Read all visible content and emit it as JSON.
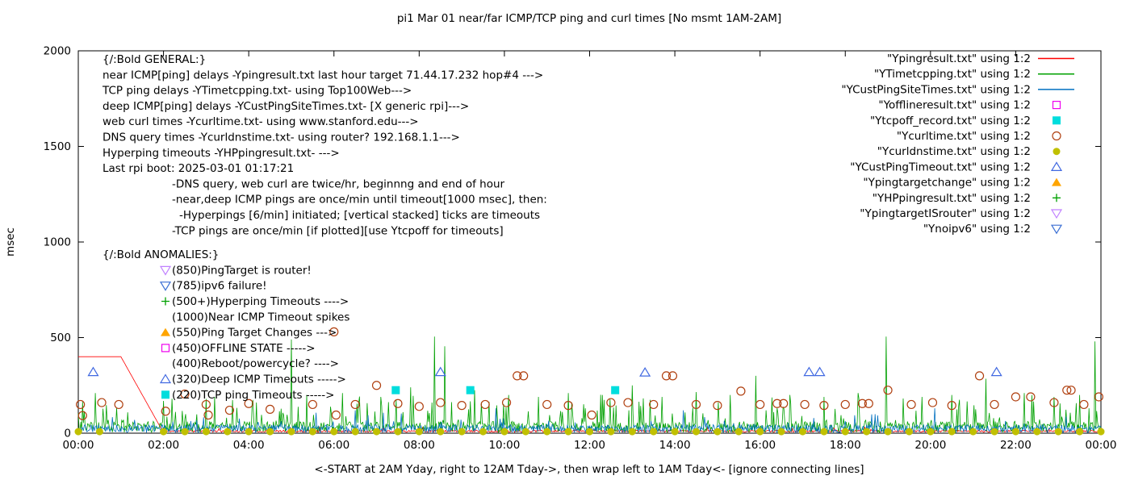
{
  "chart_data": {
    "type": "line",
    "title": "pi1 Mar 01  near/far ICMP/TCP ping and curl times [No msmt 1AM-2AM]",
    "xlabel": "<-START at 2AM Yday, right to 12AM Tday->, then wrap left to 1AM Tday<- [ignore connecting lines]",
    "ylabel": "msec",
    "xlim": [
      0,
      24
    ],
    "ylim": [
      0,
      2000
    ],
    "grid": false,
    "legend_position": "top-right-inside",
    "xticks": [
      {
        "v": 0,
        "label": "00:00"
      },
      {
        "v": 2,
        "label": "02:00"
      },
      {
        "v": 4,
        "label": "04:00"
      },
      {
        "v": 6,
        "label": "06:00"
      },
      {
        "v": 8,
        "label": "08:00"
      },
      {
        "v": 10,
        "label": "10:00"
      },
      {
        "v": 12,
        "label": "12:00"
      },
      {
        "v": 14,
        "label": "14:00"
      },
      {
        "v": 16,
        "label": "16:00"
      },
      {
        "v": 18,
        "label": "18:00"
      },
      {
        "v": 20,
        "label": "20:00"
      },
      {
        "v": 22,
        "label": "22:00"
      },
      {
        "v": 24,
        "label": "00:00"
      }
    ],
    "yticks": [
      {
        "v": 0,
        "label": "0"
      },
      {
        "v": 500,
        "label": "500"
      },
      {
        "v": 1000,
        "label": "1000"
      },
      {
        "v": 1500,
        "label": "1500"
      },
      {
        "v": 2000,
        "label": "2000"
      }
    ],
    "series": [
      {
        "name": "\"Ypingresult.txt\" using 1:2",
        "kind": "noisyline",
        "color": "#ff0000",
        "seed": 11,
        "keys": [
          [
            0,
            400
          ],
          [
            1,
            400
          ],
          [
            2,
            2
          ],
          [
            24,
            2
          ]
        ],
        "noise": {
          "from": 2,
          "lo": 3,
          "hi": 14,
          "p": 0.03,
          "extra": 25
        },
        "spikes": []
      },
      {
        "name": "\"YTimetcpping.txt\" using 1:2",
        "kind": "noisyline",
        "color": "#00a000",
        "seed": 23,
        "keys": [
          [
            0,
            0
          ],
          [
            24,
            0
          ]
        ],
        "noise": {
          "from": 0,
          "lo": 4,
          "hi": 62,
          "p": 0.1,
          "extra": 150
        },
        "spikes": [
          [
            0.4,
            210
          ],
          [
            2.2,
            180
          ],
          [
            3.2,
            190
          ],
          [
            4.1,
            170
          ],
          [
            5.0,
            490
          ],
          [
            5.35,
            200
          ],
          [
            6.2,
            210
          ],
          [
            7.1,
            190
          ],
          [
            7.8,
            240
          ],
          [
            8.35,
            505
          ],
          [
            8.6,
            455
          ],
          [
            9.3,
            225
          ],
          [
            10.1,
            200
          ],
          [
            10.8,
            190
          ],
          [
            11.5,
            210
          ],
          [
            12.3,
            200
          ],
          [
            13.0,
            250
          ],
          [
            13.7,
            190
          ],
          [
            14.5,
            215
          ],
          [
            15.3,
            200
          ],
          [
            15.9,
            300
          ],
          [
            16.7,
            200
          ],
          [
            17.5,
            190
          ],
          [
            18.3,
            210
          ],
          [
            18.95,
            505
          ],
          [
            19.8,
            190
          ],
          [
            20.5,
            200
          ],
          [
            21.3,
            285
          ],
          [
            22.2,
            210
          ],
          [
            22.9,
            190
          ],
          [
            23.5,
            200
          ],
          [
            23.85,
            480
          ]
        ]
      },
      {
        "name": "\"YCustPingSiteTimes.txt\" using 1:2",
        "kind": "noisyline",
        "color": "#0070c0",
        "seed": 37,
        "keys": [
          [
            0,
            0
          ],
          [
            24,
            0
          ]
        ],
        "noise": {
          "from": 0,
          "lo": 3,
          "hi": 45,
          "p": 0.05,
          "extra": 70
        },
        "spikes": [
          [
            6.5,
            120
          ],
          [
            9.8,
            130
          ],
          [
            14.2,
            120
          ],
          [
            20.1,
            130
          ]
        ]
      },
      {
        "name": "\"Yofflineresult.txt\" using 1:2",
        "kind": "scatter",
        "marker": "square-open",
        "color": "#ee00ee",
        "points": []
      },
      {
        "name": "\"Ytcpoff_record.txt\" using 1:2",
        "kind": "scatter",
        "marker": "square-filled",
        "color": "#00dddd",
        "points": [
          [
            7.45,
            225
          ],
          [
            9.2,
            225
          ],
          [
            12.6,
            225
          ]
        ]
      },
      {
        "name": "\"Ycurltime.txt\" using 1:2",
        "kind": "scatter",
        "marker": "circle-open",
        "color": "#b04010",
        "points": [
          [
            0.05,
            150
          ],
          [
            0.1,
            92
          ],
          [
            0.55,
            160
          ],
          [
            0.95,
            150
          ],
          [
            2.05,
            115
          ],
          [
            2.5,
            205
          ],
          [
            3.0,
            150
          ],
          [
            3.05,
            95
          ],
          [
            3.55,
            120
          ],
          [
            4.0,
            155
          ],
          [
            4.5,
            125
          ],
          [
            5.5,
            150
          ],
          [
            6.0,
            530
          ],
          [
            6.05,
            95
          ],
          [
            6.5,
            150
          ],
          [
            7.0,
            250
          ],
          [
            7.5,
            155
          ],
          [
            8.0,
            140
          ],
          [
            8.5,
            160
          ],
          [
            9.0,
            145
          ],
          [
            9.55,
            150
          ],
          [
            10.05,
            160
          ],
          [
            10.3,
            300
          ],
          [
            10.45,
            300
          ],
          [
            11.0,
            150
          ],
          [
            11.5,
            145
          ],
          [
            12.05,
            95
          ],
          [
            12.5,
            160
          ],
          [
            12.9,
            160
          ],
          [
            13.5,
            150
          ],
          [
            13.8,
            300
          ],
          [
            13.95,
            300
          ],
          [
            14.5,
            150
          ],
          [
            15.0,
            145
          ],
          [
            15.55,
            220
          ],
          [
            16.0,
            150
          ],
          [
            16.4,
            155
          ],
          [
            16.55,
            155
          ],
          [
            17.05,
            150
          ],
          [
            17.5,
            145
          ],
          [
            18.0,
            150
          ],
          [
            18.4,
            155
          ],
          [
            18.55,
            155
          ],
          [
            19.0,
            225
          ],
          [
            19.55,
            150
          ],
          [
            20.05,
            160
          ],
          [
            20.5,
            145
          ],
          [
            21.15,
            300
          ],
          [
            21.5,
            150
          ],
          [
            22.0,
            190
          ],
          [
            22.35,
            190
          ],
          [
            22.9,
            160
          ],
          [
            23.2,
            225
          ],
          [
            23.3,
            225
          ],
          [
            23.6,
            150
          ],
          [
            23.95,
            190
          ]
        ]
      },
      {
        "name": "\"Ycurldnstime.txt\" using 1:2",
        "kind": "scatter",
        "marker": "circle-filled",
        "color": "#c0c000",
        "points": [
          [
            0,
            8
          ],
          [
            0.5,
            8
          ],
          [
            2,
            8
          ],
          [
            2.5,
            8
          ],
          [
            3,
            8
          ],
          [
            3.5,
            8
          ],
          [
            4,
            8
          ],
          [
            4.5,
            8
          ],
          [
            5,
            8
          ],
          [
            5.5,
            8
          ],
          [
            6,
            8
          ],
          [
            6.5,
            8
          ],
          [
            7,
            8
          ],
          [
            7.5,
            8
          ],
          [
            8,
            8
          ],
          [
            8.5,
            8
          ],
          [
            9,
            8
          ],
          [
            9.5,
            8
          ],
          [
            10,
            8
          ],
          [
            10.5,
            8
          ],
          [
            11,
            8
          ],
          [
            11.5,
            8
          ],
          [
            12,
            8
          ],
          [
            12.5,
            8
          ],
          [
            13,
            8
          ],
          [
            13.5,
            8
          ],
          [
            14,
            8
          ],
          [
            14.5,
            8
          ],
          [
            15,
            8
          ],
          [
            15.5,
            8
          ],
          [
            16,
            8
          ],
          [
            16.5,
            8
          ],
          [
            17,
            8
          ],
          [
            17.5,
            8
          ],
          [
            18,
            8
          ],
          [
            18.5,
            8
          ],
          [
            19,
            8
          ],
          [
            19.5,
            8
          ],
          [
            20,
            8
          ],
          [
            20.5,
            8
          ],
          [
            21,
            8
          ],
          [
            21.5,
            8
          ],
          [
            22,
            8
          ],
          [
            22.5,
            8
          ],
          [
            23,
            8
          ],
          [
            23.5,
            8
          ],
          [
            24,
            8
          ]
        ]
      },
      {
        "name": "\"YCustPingTimeout.txt\" using 1:2",
        "kind": "scatter",
        "marker": "tri-up-open",
        "color": "#4169e1",
        "points": [
          [
            0.35,
            320
          ],
          [
            8.5,
            320
          ],
          [
            13.3,
            318
          ],
          [
            17.15,
            320
          ],
          [
            17.4,
            320
          ],
          [
            21.55,
            320
          ]
        ]
      },
      {
        "name": "\"Ypingtargetchange\" using 1:2",
        "kind": "scatter",
        "marker": "tri-up-filled",
        "color": "#ffa500",
        "points": []
      },
      {
        "name": "\"YHPpingresult.txt\" using 1:2",
        "kind": "scatter",
        "marker": "plus",
        "color": "#00a000",
        "points": []
      },
      {
        "name": "\"YpingtargetISrouter\" using 1:2",
        "kind": "scatter",
        "marker": "tri-down-open",
        "color": "#c080ff",
        "points": []
      },
      {
        "name": "\"Ynoipv6\" using 1:2",
        "kind": "scatter",
        "marker": "tri-down-open",
        "color": "#3b6fd4",
        "points": []
      }
    ],
    "annotations": {
      "general_lines": [
        {
          "t": "{/:Bold GENERAL:}",
          "dx": 0
        },
        {
          "t": "near ICMP[ping] delays -Ypingresult.txt last hour target 71.44.17.232 hop#4 --->",
          "dx": 0
        },
        {
          "t": "TCP ping delays -YTimetcpping.txt- using Top100Web--->",
          "dx": 0
        },
        {
          "t": "deep ICMP[ping] delays -YCustPingSiteTimes.txt- [X generic rpi]--->",
          "dx": 0
        },
        {
          "t": "web curl times -Ycurltime.txt- using www.stanford.edu--->",
          "dx": 0
        },
        {
          "t": "DNS query times -Ycurldnstime.txt- using router? 192.168.1.1--->",
          "dx": 0
        },
        {
          "t": "Hyperping timeouts -YHPpingresult.txt- --->",
          "dx": 0
        },
        {
          "t": "Last rpi boot: 2025-03-01 01:17:21",
          "dx": 0
        },
        {
          "t": "-DNS query, web curl are twice/hr, beginnng and end of hour",
          "dx": 86
        },
        {
          "t": "-near,deep ICMP pings are once/min until timeout[1000 msec], then:",
          "dx": 86
        },
        {
          "t": "-Hyperpings [6/min] initiated; [vertical stacked] ticks are timeouts",
          "dx": 95
        },
        {
          "t": "-TCP pings are once/min [if plotted][use Ytcpoff for timeouts]",
          "dx": 86
        }
      ],
      "anomalies_header": "{/:Bold ANOMALIES:}",
      "anomaly_rows": [
        {
          "marker": "tri-down-open",
          "color": "#c080ff",
          "t": "(850)PingTarget is router!"
        },
        {
          "marker": "tri-down-open",
          "color": "#3b6fd4",
          "t": "(785)ipv6 failure!"
        },
        {
          "marker": "plus",
          "color": "#00a000",
          "t": "(500+)Hyperping Timeouts ---->"
        },
        {
          "marker": null,
          "color": null,
          "t": "(1000)Near ICMP Timeout spikes"
        },
        {
          "marker": "tri-up-filled",
          "color": "#ffa500",
          "t": "(550)Ping Target Changes --->"
        },
        {
          "marker": "square-open",
          "color": "#ee00ee",
          "t": "(450)OFFLINE STATE ----->"
        },
        {
          "marker": null,
          "color": null,
          "t": "(400)Reboot/powercycle? ---->"
        },
        {
          "marker": "tri-up-open",
          "color": "#4169e1",
          "t": "(320)Deep ICMP Timeouts ----->"
        },
        {
          "marker": "square-filled",
          "color": "#00dddd",
          "t": "(220)TCP ping Timeouts ----->"
        }
      ]
    },
    "colors": {
      "border": "#000000",
      "text": "#000000",
      "background": "#ffffff"
    }
  }
}
